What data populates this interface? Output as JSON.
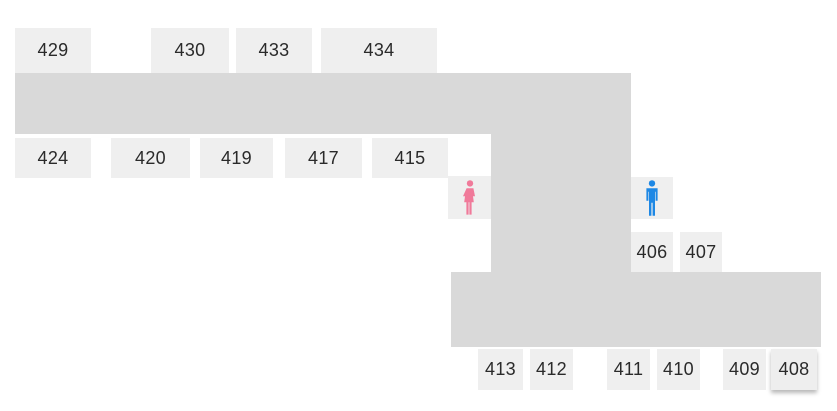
{
  "map": {
    "rooms": [
      {
        "id": "r429",
        "label": "429"
      },
      {
        "id": "r430",
        "label": "430"
      },
      {
        "id": "r433",
        "label": "433"
      },
      {
        "id": "r434",
        "label": "434"
      },
      {
        "id": "r424",
        "label": "424"
      },
      {
        "id": "r420",
        "label": "420"
      },
      {
        "id": "r419",
        "label": "419"
      },
      {
        "id": "r417",
        "label": "417"
      },
      {
        "id": "r415",
        "label": "415"
      },
      {
        "id": "r406",
        "label": "406"
      },
      {
        "id": "r407",
        "label": "407"
      },
      {
        "id": "r413",
        "label": "413"
      },
      {
        "id": "r412",
        "label": "412"
      },
      {
        "id": "r411",
        "label": "411"
      },
      {
        "id": "r410",
        "label": "410"
      },
      {
        "id": "r409",
        "label": "409"
      },
      {
        "id": "r408",
        "label": "408"
      }
    ],
    "selected_room": "408",
    "restrooms": {
      "womens": {
        "icon": "female-restroom-icon",
        "color": "#f07a9a"
      },
      "mens": {
        "icon": "male-restroom-icon",
        "color": "#1e88e5"
      }
    },
    "colors": {
      "corridor": "#d9d9d9",
      "room": "#efefef",
      "text": "#2a2a2a"
    }
  }
}
